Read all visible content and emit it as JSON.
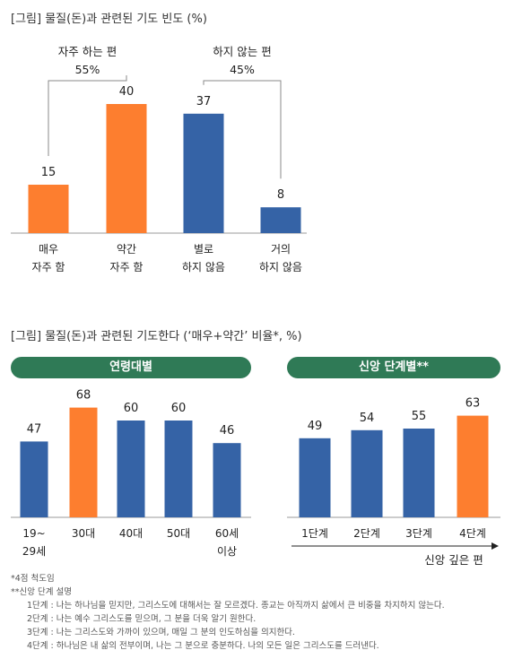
{
  "chart_data": [
    {
      "type": "bar",
      "title": "[그림] 물질(돈)과 관련된 기도 빈도 (%)",
      "categories": [
        "매우\n자주 함",
        "약간\n자주 함",
        "별로\n하지 않음",
        "거의\n하지 않음"
      ],
      "values": [
        15,
        40,
        37,
        8
      ],
      "bar_colors": [
        "#fd7e2f",
        "#fd7e2f",
        "#3563a6",
        "#3563a6"
      ],
      "brackets": [
        {
          "label": "자주 하는 편",
          "value_label": "55%",
          "categories": [
            0,
            1
          ]
        },
        {
          "label": "하지 않는 편",
          "value_label": "45%",
          "categories": [
            2,
            3
          ]
        }
      ]
    },
    {
      "type": "bar",
      "title": "[그림] 물질(돈)과 관련된 기도한다 (‘매우+약간’ 비율*, %)",
      "panel_title": "연령대별",
      "categories": [
        "19~\n29세",
        "30대",
        "40대",
        "50대",
        "60세\n이상"
      ],
      "values": [
        47,
        68,
        60,
        60,
        46
      ],
      "bar_colors": [
        "#3563a6",
        "#fd7e2f",
        "#3563a6",
        "#3563a6",
        "#3563a6"
      ]
    },
    {
      "type": "bar",
      "panel_title": "신앙 단계별**",
      "categories": [
        "1단계",
        "2단계",
        "3단계",
        "4단계"
      ],
      "values": [
        49,
        54,
        55,
        63
      ],
      "bar_colors": [
        "#3563a6",
        "#3563a6",
        "#3563a6",
        "#fd7e2f"
      ],
      "arrow_label": "신앙 깊은 편"
    }
  ],
  "notes": {
    "lines": [
      "*4점 척도임",
      "**신앙 단계 설명"
    ],
    "stages": [
      "1단계 : 나는 하나님을 믿지만, 그리스도에 대해서는 잘 모르겠다. 종교는 아직까지 삶에서 큰 비중을 차지하지 않는다.",
      "2단계 : 나는 예수 그리스도를 믿으며, 그 분을 더욱 알기 원한다.",
      "3단계 : 나는 그리스도와 가까이 있으며, 매일 그 분의 인도하심을 의지한다.",
      "4단계 : 하나님은 내 삶의 전부이며, 나는 그 분으로 충분하다. 나의 모든 일은 그리스도를 드러낸다."
    ]
  }
}
